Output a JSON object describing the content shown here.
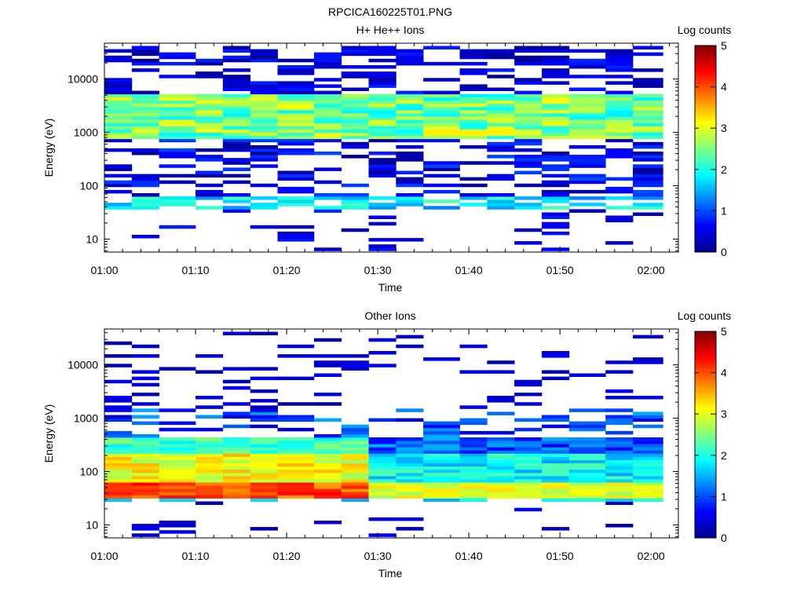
{
  "page_title": "RPCICA160225T01.PNG",
  "colorbar": {
    "label": "Log counts",
    "ticks": [
      "0",
      "1",
      "2",
      "3",
      "4",
      "5"
    ],
    "range": [
      0,
      5
    ],
    "colormap": "jet"
  },
  "chart_data": [
    {
      "type": "heatmap",
      "title": "H+ He++ Ions",
      "xlabel": "Time",
      "ylabel": "Energy (eV)",
      "y_scale": "log",
      "ylim": [
        5.7,
        47000
      ],
      "xlim": [
        "01:00",
        "02:03"
      ],
      "x_ticks": [
        "01:00",
        "01:10",
        "01:20",
        "01:30",
        "01:40",
        "01:50",
        "02:00"
      ],
      "y_ticks": [
        "10",
        "100",
        "1000",
        "10000"
      ],
      "time_bins": [
        "01:00",
        "01:03",
        "01:06",
        "01:10",
        "01:13",
        "01:16",
        "01:19",
        "01:23",
        "01:26",
        "01:29",
        "01:32",
        "01:35",
        "01:39",
        "01:42",
        "01:45",
        "01:48",
        "01:51",
        "01:55",
        "01:58"
      ],
      "profile": "proton",
      "value_range": [
        0,
        5
      ]
    },
    {
      "type": "heatmap",
      "title": "Other Ions",
      "xlabel": "Time",
      "ylabel": "Energy (eV)",
      "y_scale": "log",
      "ylim": [
        5.7,
        47000
      ],
      "xlim": [
        "01:00",
        "02:03"
      ],
      "x_ticks": [
        "01:00",
        "01:10",
        "01:20",
        "01:30",
        "01:40",
        "01:50",
        "02:00"
      ],
      "y_ticks": [
        "10",
        "100",
        "1000",
        "10000"
      ],
      "time_bins": [
        "01:00",
        "01:03",
        "01:06",
        "01:10",
        "01:13",
        "01:16",
        "01:19",
        "01:23",
        "01:26",
        "01:29",
        "01:32",
        "01:35",
        "01:39",
        "01:42",
        "01:45",
        "01:48",
        "01:51",
        "01:55",
        "01:58"
      ],
      "profile": "heavy",
      "value_range": [
        0,
        5
      ]
    }
  ]
}
